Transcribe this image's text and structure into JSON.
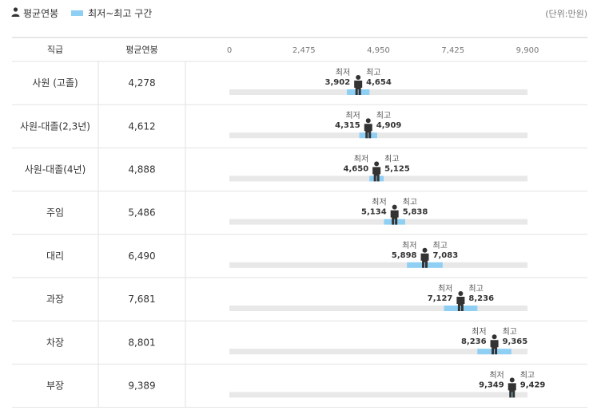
{
  "legend": {
    "avg_label": "평균연봉",
    "range_label": "최저~최고 구간",
    "range_color": "#8fcff4",
    "avg_icon": "person-icon"
  },
  "unit": "(단위:만원)",
  "headers": {
    "rank": "직급",
    "avg": "평균연봉"
  },
  "range_caption": {
    "min": "최저",
    "max": "최고"
  },
  "colors": {
    "track": "#e8e8e8",
    "range": "#8fcff4",
    "marker": "#333333"
  },
  "chart_data": {
    "type": "range",
    "xlim": [
      0,
      9900
    ],
    "ticks": [
      "0",
      "2,475",
      "4,950",
      "7,425",
      "9,900"
    ],
    "rows": [
      {
        "rank": "사원 (고졸)",
        "avg": 4278,
        "avg_label": "4,278",
        "min": 3902,
        "min_label": "3,902",
        "max": 4654,
        "max_label": "4,654"
      },
      {
        "rank": "사원-대졸(2,3년)",
        "avg": 4612,
        "avg_label": "4,612",
        "min": 4315,
        "min_label": "4,315",
        "max": 4909,
        "max_label": "4,909"
      },
      {
        "rank": "사원-대졸(4년)",
        "avg": 4888,
        "avg_label": "4,888",
        "min": 4650,
        "min_label": "4,650",
        "max": 5125,
        "max_label": "5,125"
      },
      {
        "rank": "주임",
        "avg": 5486,
        "avg_label": "5,486",
        "min": 5134,
        "min_label": "5,134",
        "max": 5838,
        "max_label": "5,838"
      },
      {
        "rank": "대리",
        "avg": 6490,
        "avg_label": "6,490",
        "min": 5898,
        "min_label": "5,898",
        "max": 7083,
        "max_label": "7,083"
      },
      {
        "rank": "과장",
        "avg": 7681,
        "avg_label": "7,681",
        "min": 7127,
        "min_label": "7,127",
        "max": 8236,
        "max_label": "8,236"
      },
      {
        "rank": "차장",
        "avg": 8801,
        "avg_label": "8,801",
        "min": 8236,
        "min_label": "8,236",
        "max": 9365,
        "max_label": "9,365"
      },
      {
        "rank": "부장",
        "avg": 9389,
        "avg_label": "9,389",
        "min": 9349,
        "min_label": "9,349",
        "max": 9429,
        "max_label": "9,429"
      }
    ]
  }
}
